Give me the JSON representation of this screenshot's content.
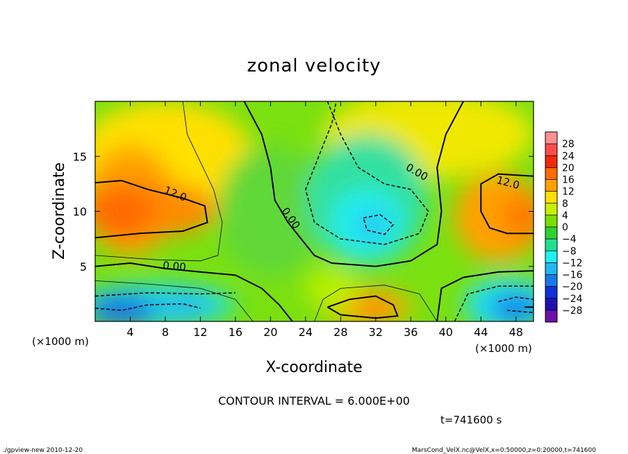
{
  "chart_data": {
    "type": "heatmap",
    "title": "zonal velocity",
    "xlabel": "X-coordinate",
    "ylabel": "Z-coordinate",
    "x_unit_left": "(×1000 m)",
    "x_unit_right": "(×1000 m)",
    "xlim": [
      0,
      50
    ],
    "ylim": [
      0,
      20
    ],
    "x_ticks": [
      4,
      8,
      12,
      16,
      20,
      24,
      28,
      32,
      36,
      40,
      44,
      48
    ],
    "y_ticks": [
      5,
      10,
      15
    ],
    "contour_interval_text": "CONTOUR INTERVAL = 6.000E+00",
    "time_text": "t=741600 s",
    "contour_labels": [
      {
        "text": "12.0",
        "x": 9,
        "y": 11.3,
        "angle": 22
      },
      {
        "text": "0.00",
        "x": 9,
        "y": 4.7,
        "angle": 5
      },
      {
        "text": "0.00",
        "x": 22,
        "y": 9.2,
        "angle": 55
      },
      {
        "text": "0.00",
        "x": 36.5,
        "y": 13.3,
        "angle": 30
      },
      {
        "text": "12.0",
        "x": 47,
        "y": 12.3,
        "angle": 15
      }
    ],
    "colorbar": {
      "labels": [
        "28",
        "24",
        "20",
        "16",
        "12",
        "8",
        "4",
        "0",
        "-4",
        "-8",
        "-12",
        "-16",
        "-20",
        "-24",
        "-28"
      ],
      "colors": [
        "#ff9090",
        "#ff4a4a",
        "#f0280a",
        "#ff6a00",
        "#ffa000",
        "#ffe000",
        "#c8f000",
        "#78e000",
        "#30d030",
        "#20e090",
        "#20f0f0",
        "#20b8f0",
        "#1878e8",
        "#1030d8",
        "#2010b0",
        "#6a10a8"
      ]
    }
  },
  "footer": {
    "left": "./gpview-new  2010-12-20",
    "right": "MarsCond_VelX.nc@VelX,x=0:50000,z=0:20000,t=741600"
  }
}
